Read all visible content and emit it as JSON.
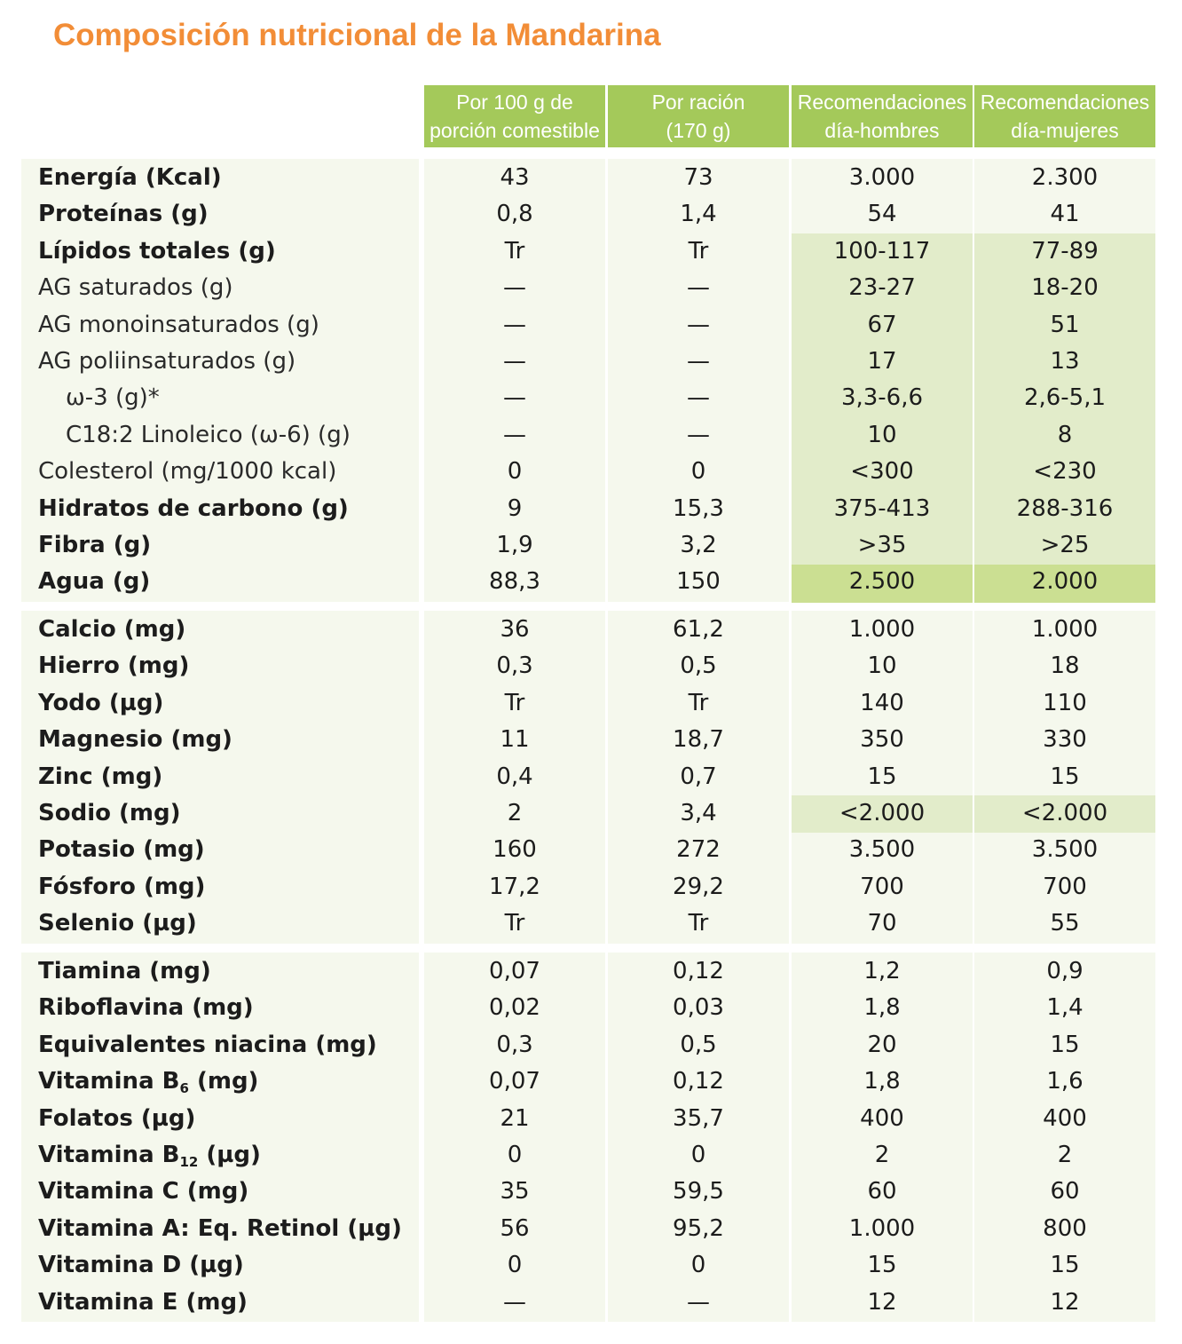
{
  "title": "Composición nutricional de la Mandarina",
  "colors": {
    "title": "#f28d37",
    "header_bg": "#a4c95a",
    "panel_bg": "#f5f8ed",
    "highlight_light": "#e2ecca",
    "highlight_dark": "#cbdf92"
  },
  "headers": [
    [
      "Por 100 g de",
      "porción comestible"
    ],
    [
      "Por ración",
      "(170 g)"
    ],
    [
      "Recomendaciones",
      "día-hombres"
    ],
    [
      "Recomendaciones",
      "día-mujeres"
    ]
  ],
  "sections": [
    [
      {
        "label": "Energía (Kcal)",
        "style": "bold",
        "values": [
          "43",
          "73",
          "3.000",
          "2.300"
        ]
      },
      {
        "label": "Proteínas (g)",
        "style": "bold",
        "values": [
          "0,8",
          "1,4",
          "54",
          "41"
        ]
      },
      {
        "label": "Lípidos totales (g)",
        "style": "bold",
        "values": [
          "Tr",
          "Tr",
          "100-117",
          "77-89"
        ],
        "highlight": "light"
      },
      {
        "label": "AG saturados (g)",
        "style": "normal",
        "values": [
          "—",
          "—",
          "23-27",
          "18-20"
        ],
        "highlight": "light"
      },
      {
        "label": "AG monoinsaturados (g)",
        "style": "normal",
        "values": [
          "—",
          "—",
          "67",
          "51"
        ],
        "highlight": "light"
      },
      {
        "label": "AG poliinsaturados (g)",
        "style": "normal",
        "values": [
          "—",
          "—",
          "17",
          "13"
        ],
        "highlight": "light"
      },
      {
        "label": "ω-3 (g)*",
        "style": "indent",
        "values": [
          "—",
          "—",
          "3,3-6,6",
          "2,6-5,1"
        ],
        "highlight": "light"
      },
      {
        "label": "C18:2 Linoleico (ω-6) (g)",
        "style": "indent",
        "values": [
          "—",
          "—",
          "10",
          "8"
        ],
        "highlight": "light"
      },
      {
        "label": "Colesterol (mg/1000 kcal)",
        "style": "normal",
        "values": [
          "0",
          "0",
          "<300",
          "<230"
        ],
        "highlight": "light"
      },
      {
        "label": "Hidratos de carbono (g)",
        "style": "bold",
        "values": [
          "9",
          "15,3",
          "375-413",
          "288-316"
        ],
        "highlight": "light"
      },
      {
        "label": "Fibra (g)",
        "style": "bold",
        "values": [
          "1,9",
          "3,2",
          ">35",
          ">25"
        ],
        "highlight": "light"
      },
      {
        "label": "Agua (g)",
        "style": "bold",
        "values": [
          "88,3",
          "150",
          "2.500",
          "2.000"
        ],
        "highlight": "dark"
      }
    ],
    [
      {
        "label": "Calcio (mg)",
        "style": "bold",
        "values": [
          "36",
          "61,2",
          "1.000",
          "1.000"
        ]
      },
      {
        "label": "Hierro (mg)",
        "style": "bold",
        "values": [
          "0,3",
          "0,5",
          "10",
          "18"
        ]
      },
      {
        "label": "Yodo (µg)",
        "style": "bold",
        "values": [
          "Tr",
          "Tr",
          "140",
          "110"
        ]
      },
      {
        "label": "Magnesio (mg)",
        "style": "bold",
        "values": [
          "11",
          "18,7",
          "350",
          "330"
        ]
      },
      {
        "label": "Zinc (mg)",
        "style": "bold",
        "values": [
          "0,4",
          "0,7",
          "15",
          "15"
        ]
      },
      {
        "label": "Sodio (mg)",
        "style": "bold",
        "values": [
          "2",
          "3,4",
          "<2.000",
          "<2.000"
        ],
        "highlight": "light"
      },
      {
        "label": "Potasio (mg)",
        "style": "bold",
        "values": [
          "160",
          "272",
          "3.500",
          "3.500"
        ]
      },
      {
        "label": "Fósforo (mg)",
        "style": "bold",
        "values": [
          "17,2",
          "29,2",
          "700",
          "700"
        ]
      },
      {
        "label": "Selenio (µg)",
        "style": "bold",
        "values": [
          "Tr",
          "Tr",
          "70",
          "55"
        ]
      }
    ],
    [
      {
        "label": "Tiamina (mg)",
        "style": "bold",
        "values": [
          "0,07",
          "0,12",
          "1,2",
          "0,9"
        ]
      },
      {
        "label": "Riboflavina (mg)",
        "style": "bold",
        "values": [
          "0,02",
          "0,03",
          "1,8",
          "1,4"
        ]
      },
      {
        "label": "Equivalentes niacina (mg)",
        "style": "bold",
        "values": [
          "0,3",
          "0,5",
          "20",
          "15"
        ]
      },
      {
        "label": "Vitamina B",
        "sub": "6",
        "label_after": " (mg)",
        "style": "bold",
        "values": [
          "0,07",
          "0,12",
          "1,8",
          "1,6"
        ]
      },
      {
        "label": "Folatos (µg)",
        "style": "bold",
        "values": [
          "21",
          "35,7",
          "400",
          "400"
        ]
      },
      {
        "label": "Vitamina B",
        "sub": "12",
        "label_after": " (µg)",
        "style": "bold",
        "values": [
          "0",
          "0",
          "2",
          "2"
        ]
      },
      {
        "label": "Vitamina C (mg)",
        "style": "bold",
        "values": [
          "35",
          "59,5",
          "60",
          "60"
        ]
      },
      {
        "label": "Vitamina A: Eq. Retinol (µg)",
        "style": "bold",
        "values": [
          "56",
          "95,2",
          "1.000",
          "800"
        ]
      },
      {
        "label": "Vitamina D (µg)",
        "style": "bold",
        "values": [
          "0",
          "0",
          "15",
          "15"
        ]
      },
      {
        "label": "Vitamina E (mg)",
        "style": "bold",
        "values": [
          "—",
          "—",
          "12",
          "12"
        ]
      }
    ]
  ]
}
